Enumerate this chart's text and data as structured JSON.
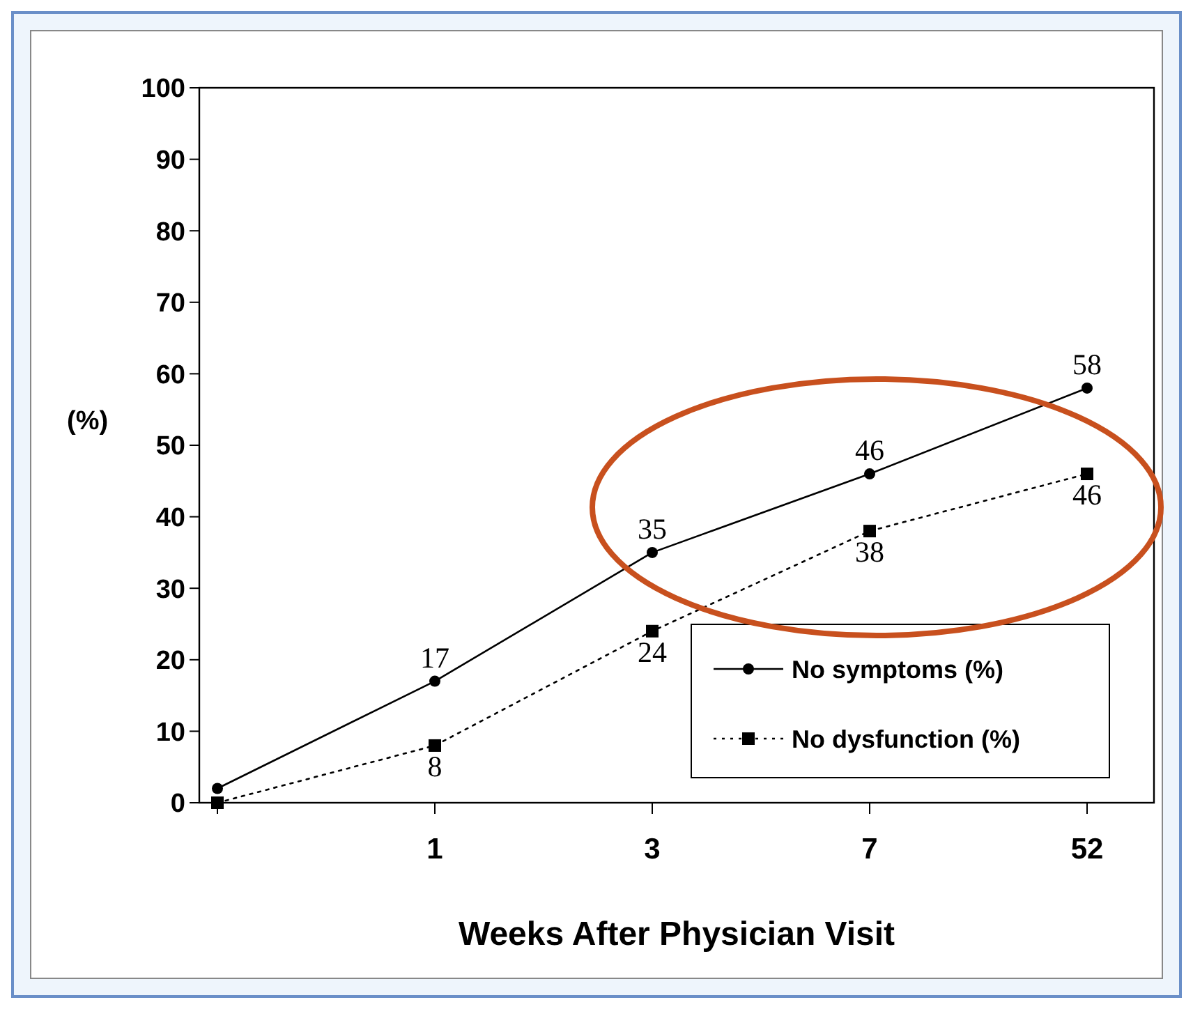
{
  "chart_data": {
    "type": "line",
    "xlabel": "Weeks After Physician Visit",
    "ylabel": "(%)",
    "categories": [
      null,
      "1",
      "3",
      "7",
      "52"
    ],
    "series": [
      {
        "name": "No symptoms (%)",
        "color": "#000000",
        "values": [
          2,
          17,
          35,
          46,
          58
        ],
        "value_labels": [
          null,
          "17",
          "35",
          "46",
          "58"
        ],
        "marker": "circle",
        "line_style": "solid"
      },
      {
        "name": "No dysfunction (%)",
        "color": "#000000",
        "values": [
          0,
          8,
          24,
          38,
          46
        ],
        "value_labels": [
          null,
          "8",
          "24",
          "38",
          "46"
        ],
        "marker": "square",
        "line_style": "dotted"
      }
    ],
    "ylim": [
      0,
      100
    ],
    "yticks": [
      0,
      10,
      20,
      30,
      40,
      50,
      60,
      70,
      80,
      90,
      100
    ],
    "grid": false,
    "legend": "bottom right"
  }
}
